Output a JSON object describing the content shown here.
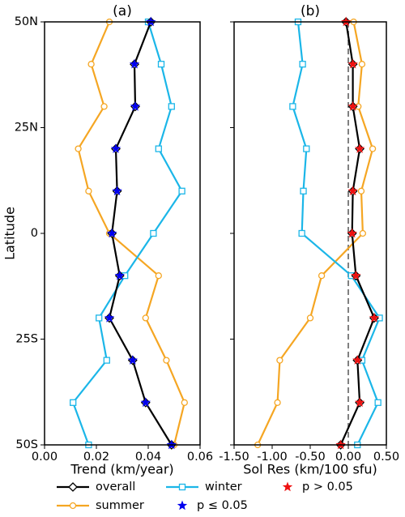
{
  "chart_data": [
    {
      "type": "line",
      "title": "(a)",
      "x_label": "Trend (km/year)",
      "y_label": "Latitude",
      "y": [
        50,
        40,
        30,
        20,
        10,
        0,
        -10,
        -20,
        -30,
        -40,
        -50
      ],
      "ylim": [
        -50,
        50
      ],
      "yticks": [
        {
          "value": 50,
          "label": "50N"
        },
        {
          "value": 25,
          "label": "25N"
        },
        0,
        {
          "value": -25,
          "label": "25S"
        },
        {
          "value": -50,
          "label": "50S"
        }
      ],
      "xlim": [
        0,
        0.06
      ],
      "xticks": [
        {
          "value": 0,
          "label": "0.00"
        },
        {
          "value": 0.02,
          "label": "0.02"
        },
        {
          "value": 0.04,
          "label": "0.04"
        },
        {
          "value": 0.06,
          "label": "0.06"
        }
      ],
      "series": [
        {
          "name": "summer",
          "color": "#f5a623",
          "marker": "circle",
          "values": [
            0.025,
            0.018,
            0.023,
            0.013,
            0.017,
            0.025,
            0.044,
            0.039,
            0.047,
            0.054,
            0.05
          ]
        },
        {
          "name": "winter",
          "color": "#1bb6e8",
          "marker": "square",
          "values": [
            0.04,
            0.045,
            0.049,
            0.044,
            0.053,
            0.042,
            0.031,
            0.021,
            0.024,
            0.011,
            0.017
          ]
        },
        {
          "name": "overall",
          "color": "#000000",
          "marker": "diamond",
          "values": [
            0.041,
            0.0347,
            0.035,
            0.0275,
            0.028,
            0.026,
            0.029,
            0.025,
            0.034,
            0.039,
            0.049
          ]
        }
      ],
      "significant": [
        true,
        true,
        true,
        true,
        true,
        true,
        true,
        true,
        true,
        true,
        true
      ]
    },
    {
      "type": "line",
      "title": "(b)",
      "x_label": "Sol Res (km/100 sfu)",
      "y": [
        50,
        40,
        30,
        20,
        10,
        0,
        -10,
        -20,
        -30,
        -40,
        -50
      ],
      "ylim": [
        -50,
        50
      ],
      "xlim": [
        -1.5,
        0.5
      ],
      "xticks": [
        {
          "value": -1.5,
          "label": "-1.50"
        },
        {
          "value": -1.0,
          "label": "-1.00"
        },
        {
          "value": -0.5,
          "label": "-0.50"
        },
        {
          "value": 0,
          "label": "0.00"
        },
        {
          "value": 0.5,
          "label": "0.50"
        }
      ],
      "vline": 0,
      "series": [
        {
          "name": "summer",
          "color": "#f5a623",
          "marker": "circle",
          "values": [
            0.07,
            0.18,
            0.13,
            0.32,
            0.17,
            0.19,
            -0.35,
            -0.5,
            -0.9,
            -0.93,
            -1.19
          ]
        },
        {
          "name": "winter",
          "color": "#1bb6e8",
          "marker": "square",
          "values": [
            -0.66,
            -0.6,
            -0.73,
            -0.55,
            -0.59,
            -0.61,
            0.04,
            0.41,
            0.18,
            0.39,
            0.12
          ]
        },
        {
          "name": "overall",
          "color": "#000000",
          "marker": "diamond",
          "values": [
            -0.03,
            0.06,
            0.06,
            0.15,
            0.06,
            0.05,
            0.1,
            0.34,
            0.12,
            0.15,
            -0.1
          ]
        }
      ],
      "significant": [
        false,
        false,
        false,
        false,
        false,
        false,
        false,
        false,
        false,
        false,
        false
      ]
    }
  ],
  "star_legend": [
    {
      "label": "p ≤ 0.05",
      "color": "#0000ee",
      "significant": true
    },
    {
      "label": "p > 0.05",
      "color": "#ee1111",
      "significant": false
    }
  ]
}
